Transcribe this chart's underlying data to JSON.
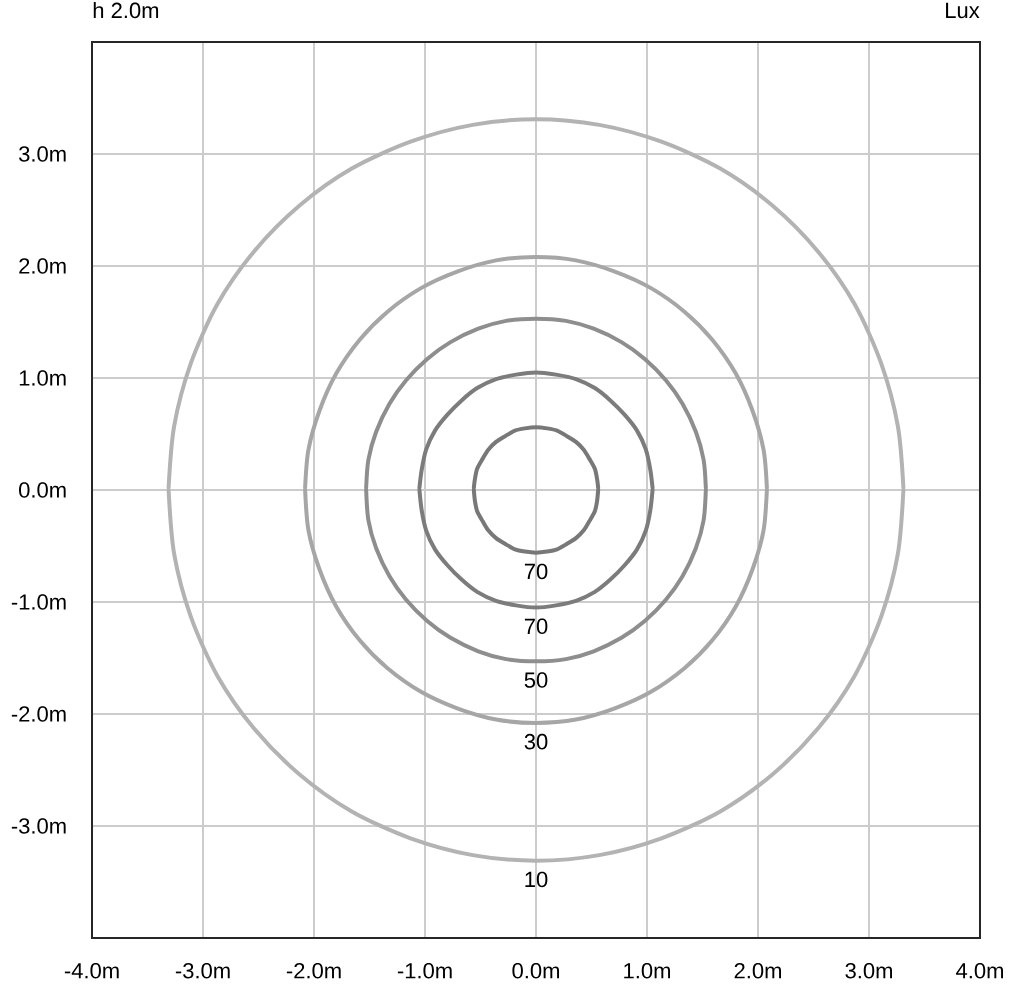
{
  "chart_data": {
    "type": "line",
    "title": "h 2.0m",
    "annotations": [
      "Lux"
    ],
    "xlim": [
      -4,
      4
    ],
    "ylim": [
      -4,
      4
    ],
    "xticks": [
      {
        "value": -4,
        "label": "-4.0m"
      },
      {
        "value": -3,
        "label": "-3.0m"
      },
      {
        "value": -2,
        "label": "-2.0m"
      },
      {
        "value": -1,
        "label": "-1.0m"
      },
      {
        "value": 0,
        "label": "0.0m"
      },
      {
        "value": 1,
        "label": "1.0m"
      },
      {
        "value": 2,
        "label": "2.0m"
      },
      {
        "value": 3,
        "label": "3.0m"
      },
      {
        "value": 4,
        "label": "4.0m"
      }
    ],
    "yticks": [
      {
        "value": -3,
        "label": "-3.0m"
      },
      {
        "value": -2,
        "label": "-2.0m"
      },
      {
        "value": -1,
        "label": "-1.0m"
      },
      {
        "value": 0,
        "label": "0.0m"
      },
      {
        "value": 1,
        "label": "1.0m"
      },
      {
        "value": 2,
        "label": "2.0m"
      },
      {
        "value": 3,
        "label": "3.0m"
      }
    ],
    "grid": true,
    "marker": "none",
    "line_style": "solid",
    "series": [
      {
        "name": "70",
        "color": "#787878",
        "x": [
          -0.56,
          -0.55,
          -0.53,
          -0.48,
          -0.43,
          -0.36,
          -0.28,
          -0.19,
          -0.1,
          0,
          0.1,
          0.19,
          0.28,
          0.36,
          0.43,
          0.48,
          0.53,
          0.55,
          0.56
        ],
        "values": [
          0,
          -0.1,
          -0.19,
          -0.28,
          -0.36,
          -0.43,
          -0.48,
          -0.53,
          -0.55,
          -0.56,
          -0.55,
          -0.53,
          -0.48,
          -0.43,
          -0.36,
          -0.28,
          -0.19,
          -0.1,
          0
        ]
      },
      {
        "color": "#787878",
        "x": [
          0.56,
          0.55,
          0.53,
          0.48,
          0.43,
          0.36,
          0.28,
          0.19,
          0.1,
          0,
          -0.1,
          -0.19,
          -0.28,
          -0.36,
          -0.43,
          -0.48,
          -0.53,
          -0.55,
          -0.56
        ],
        "values": [
          0.02,
          0.1,
          0.19,
          0.28,
          0.36,
          0.43,
          0.48,
          0.53,
          0.55,
          0.56,
          0.55,
          0.53,
          0.48,
          0.43,
          0.36,
          0.28,
          0.19,
          0.1,
          0.02
        ]
      },
      {
        "name": "70",
        "color": "#7c7c7c",
        "x": [
          -1.05,
          -1.03,
          -0.99,
          -0.91,
          -0.8,
          -0.67,
          -0.53,
          -0.36,
          -0.18,
          0,
          0.18,
          0.36,
          0.53,
          0.67,
          0.8,
          0.91,
          0.99,
          1.03,
          1.05
        ],
        "values": [
          0,
          -0.18,
          -0.36,
          -0.53,
          -0.67,
          -0.8,
          -0.91,
          -0.99,
          -1.03,
          -1.05,
          -1.03,
          -0.99,
          -0.91,
          -0.8,
          -0.67,
          -0.53,
          -0.36,
          -0.18,
          0
        ]
      },
      {
        "color": "#7c7c7c",
        "x": [
          1.05,
          1.03,
          0.99,
          0.91,
          0.8,
          0.67,
          0.53,
          0.36,
          0.18,
          0,
          -0.18,
          -0.36,
          -0.53,
          -0.67,
          -0.8,
          -0.91,
          -0.99,
          -1.03,
          -1.05
        ],
        "values": [
          0.02,
          0.18,
          0.36,
          0.53,
          0.67,
          0.8,
          0.91,
          0.99,
          1.03,
          1.05,
          1.03,
          0.99,
          0.91,
          0.8,
          0.67,
          0.53,
          0.36,
          0.18,
          0.02
        ]
      },
      {
        "name": "50",
        "color": "#8e8e8e",
        "x": [
          -1.53,
          -1.51,
          -1.44,
          -1.32,
          -1.17,
          -0.98,
          -0.77,
          -0.52,
          -0.27,
          0,
          0.27,
          0.52,
          0.77,
          0.98,
          1.17,
          1.32,
          1.44,
          1.51,
          1.53
        ],
        "values": [
          0,
          -0.27,
          -0.52,
          -0.77,
          -0.98,
          -1.17,
          -1.32,
          -1.44,
          -1.51,
          -1.53,
          -1.51,
          -1.44,
          -1.32,
          -1.17,
          -0.98,
          -0.77,
          -0.52,
          -0.27,
          0
        ]
      },
      {
        "color": "#8e8e8e",
        "x": [
          1.53,
          1.51,
          1.44,
          1.32,
          1.17,
          0.98,
          0.77,
          0.52,
          0.27,
          0,
          -0.27,
          -0.52,
          -0.77,
          -0.98,
          -1.17,
          -1.32,
          -1.44,
          -1.51,
          -1.53
        ],
        "values": [
          0.02,
          0.27,
          0.52,
          0.77,
          0.98,
          1.17,
          1.32,
          1.44,
          1.51,
          1.53,
          1.51,
          1.44,
          1.32,
          1.17,
          0.98,
          0.77,
          0.52,
          0.27,
          0.02
        ]
      },
      {
        "name": "30",
        "color": "#a6a6a6",
        "x": [
          -2.08,
          -2.05,
          -1.95,
          -1.8,
          -1.59,
          -1.34,
          -1.04,
          -0.71,
          -0.36,
          0,
          0.36,
          0.71,
          1.04,
          1.34,
          1.59,
          1.8,
          1.95,
          2.05,
          2.08
        ],
        "values": [
          0,
          -0.36,
          -0.71,
          -1.04,
          -1.34,
          -1.59,
          -1.8,
          -1.95,
          -2.05,
          -2.08,
          -2.05,
          -1.95,
          -1.8,
          -1.59,
          -1.34,
          -1.04,
          -0.71,
          -0.36,
          0
        ]
      },
      {
        "color": "#a6a6a6",
        "x": [
          2.08,
          2.05,
          1.95,
          1.8,
          1.59,
          1.34,
          1.04,
          0.71,
          0.36,
          0,
          -0.36,
          -0.71,
          -1.04,
          -1.34,
          -1.59,
          -1.8,
          -1.95,
          -2.05,
          -2.08
        ],
        "values": [
          0.02,
          0.36,
          0.71,
          1.04,
          1.34,
          1.59,
          1.8,
          1.95,
          2.05,
          2.08,
          2.05,
          1.95,
          1.8,
          1.59,
          1.34,
          1.04,
          0.71,
          0.36,
          0.02
        ]
      },
      {
        "name": "10",
        "color": "#b3b3b3",
        "x": [
          -3.31,
          -3.26,
          -3.11,
          -2.87,
          -2.54,
          -2.13,
          -1.66,
          -1.13,
          -0.57,
          0,
          0.57,
          1.13,
          1.66,
          2.13,
          2.54,
          2.87,
          3.11,
          3.26,
          3.31
        ],
        "values": [
          0,
          -0.57,
          -1.13,
          -1.66,
          -2.13,
          -2.54,
          -2.87,
          -3.11,
          -3.26,
          -3.31,
          -3.26,
          -3.11,
          -2.87,
          -2.54,
          -2.13,
          -1.66,
          -1.13,
          -0.57,
          0
        ]
      },
      {
        "color": "#b3b3b3",
        "x": [
          3.31,
          3.26,
          3.11,
          2.87,
          2.54,
          2.13,
          1.66,
          1.13,
          0.57,
          0,
          -0.57,
          -1.13,
          -1.66,
          -2.13,
          -2.54,
          -2.87,
          -3.11,
          -3.26,
          -3.31
        ],
        "values": [
          0.02,
          0.57,
          1.13,
          1.66,
          2.13,
          2.54,
          2.87,
          3.11,
          3.26,
          3.31,
          3.26,
          3.11,
          2.87,
          2.54,
          2.13,
          1.66,
          1.13,
          0.57,
          0.02
        ]
      }
    ]
  }
}
